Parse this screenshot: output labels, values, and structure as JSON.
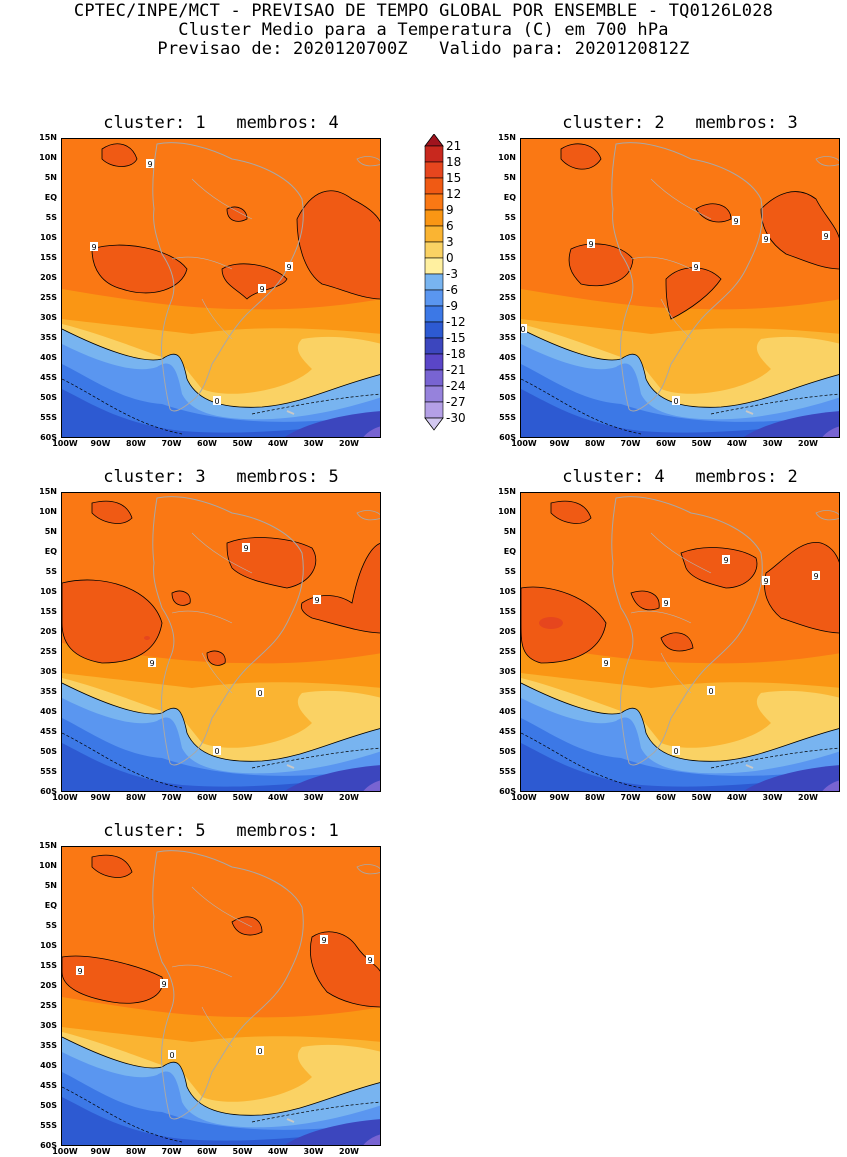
{
  "header": {
    "line1": "CPTEC/INPE/MCT - PREVISAO DE TEMPO GLOBAL POR ENSEMBLE - TQ0126L028",
    "line2": "Cluster Medio para a Temperatura (C) em 700 hPa",
    "line3": "Previsao de: 2020120700Z   Valido para: 2020120812Z"
  },
  "lat_labels": [
    "15N",
    "10N",
    "5N",
    "EQ",
    "5S",
    "10S",
    "15S",
    "20S",
    "25S",
    "30S",
    "35S",
    "40S",
    "45S",
    "50S",
    "55S",
    "60S"
  ],
  "lon_labels": [
    "100W",
    "90W",
    "80W",
    "70W",
    "60W",
    "50W",
    "40W",
    "30W",
    "20W"
  ],
  "panels": [
    {
      "title": "cluster: 1   membros: 4",
      "variant": 1
    },
    {
      "title": "cluster: 2   membros: 3",
      "variant": 2
    },
    {
      "title": "cluster: 3   membros: 5",
      "variant": 3
    },
    {
      "title": "cluster: 4   membros: 2",
      "variant": 4
    },
    {
      "title": "cluster: 5   membros: 1",
      "variant": 5
    }
  ],
  "colorbar": {
    "levels": [
      "21",
      "18",
      "15",
      "12",
      "9",
      "6",
      "3",
      "0",
      "-3",
      "-6",
      "-9",
      "-12",
      "-15",
      "-18",
      "-21",
      "-24",
      "-27",
      "-30"
    ],
    "colors": [
      "#a0141e",
      "#c8281e",
      "#e6461e",
      "#f05a14",
      "#fa7814",
      "#fa9614",
      "#fab432",
      "#fad264",
      "#fff0a0",
      "#78b4f0",
      "#5a96f0",
      "#3c78e6",
      "#2d5ad2",
      "#3c46be",
      "#5a46c8",
      "#7864d2",
      "#9682dc",
      "#b4a0e6",
      "#d2c8f0"
    ]
  },
  "contour_labels": {
    "nine": "9",
    "zero": "0"
  }
}
